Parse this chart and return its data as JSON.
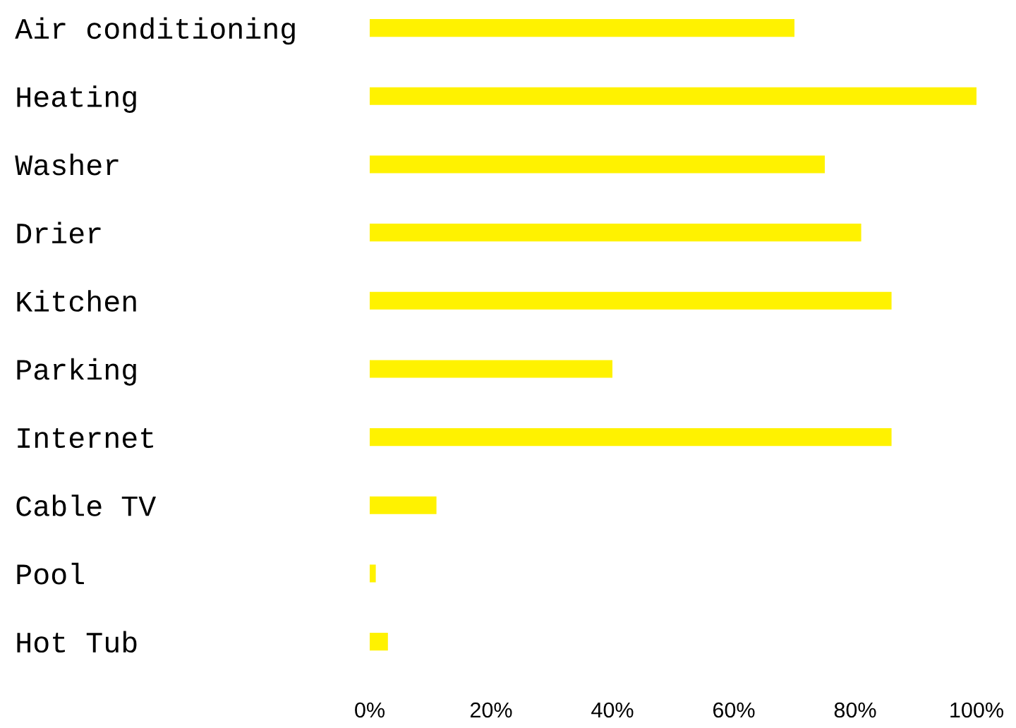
{
  "chart_data": {
    "type": "bar",
    "orientation": "horizontal",
    "categories": [
      "Air conditioning",
      "Heating",
      "Washer",
      "Drier",
      "Kitchen",
      "Parking",
      "Internet",
      "Cable TV",
      "Pool",
      "Hot Tub"
    ],
    "values": [
      70,
      100,
      75,
      81,
      86,
      40,
      86,
      11,
      1,
      3
    ],
    "color": "#fff200",
    "xlim": [
      0,
      100
    ],
    "xticks": [
      {
        "value": 0,
        "label": "0%"
      },
      {
        "value": 20,
        "label": "20%"
      },
      {
        "value": 40,
        "label": "40%"
      },
      {
        "value": 60,
        "label": "60%"
      },
      {
        "value": 80,
        "label": "80%"
      },
      {
        "value": 100,
        "label": "100%"
      }
    ],
    "grid": false,
    "legend": false
  }
}
